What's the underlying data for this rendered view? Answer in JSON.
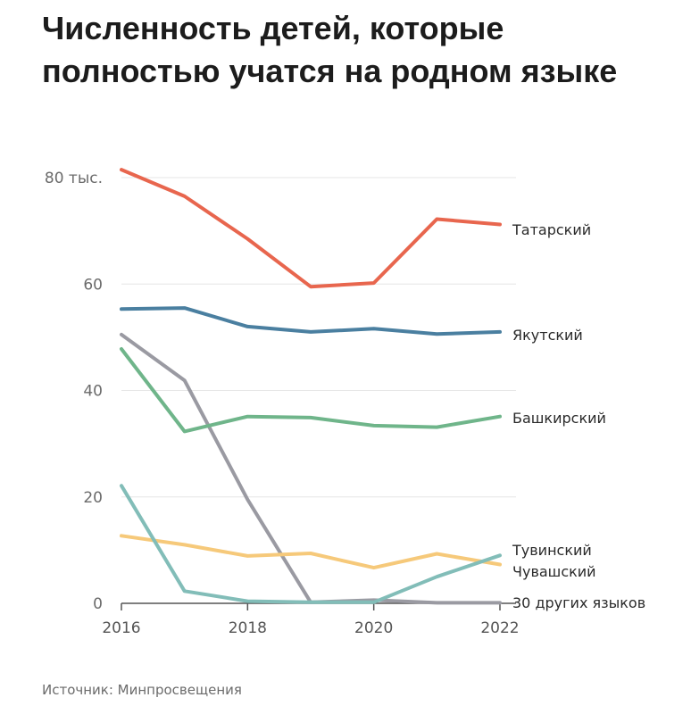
{
  "chart_data": {
    "type": "line",
    "title": "Численность детей, которые полностью учатся на родном языке",
    "x": [
      2016,
      2017,
      2018,
      2019,
      2020,
      2021,
      2022
    ],
    "x_tick_labels": [
      "2016",
      "2018",
      "2020",
      "2022"
    ],
    "y_tick_labels": [
      "0",
      "20",
      "40",
      "60",
      "80 тыс."
    ],
    "ylim": [
      0,
      80
    ],
    "grid": true,
    "series": [
      {
        "name": "Татарский",
        "color": "#e8664e",
        "values": [
          81.5,
          76.5,
          68.5,
          59.5,
          60.2,
          72.2,
          71.2
        ]
      },
      {
        "name": "Якутский",
        "color": "#4a7fa0",
        "values": [
          55.3,
          55.5,
          52.0,
          51.0,
          51.6,
          50.6,
          51.0
        ]
      },
      {
        "name": "Башкирский",
        "color": "#6fb58a",
        "values": [
          47.8,
          32.3,
          35.1,
          34.9,
          33.4,
          33.1,
          35.1
        ]
      },
      {
        "name": "Тувинский",
        "color": "#82bdb8",
        "values": [
          22.1,
          2.3,
          0.4,
          0.2,
          0.2,
          5.0,
          9.0
        ]
      },
      {
        "name": "Чувашский",
        "color": "#f6c97a",
        "values": [
          12.7,
          11.0,
          8.9,
          9.4,
          6.7,
          9.3,
          7.3
        ]
      },
      {
        "name": "30 других языков",
        "color": "#9a9aa2",
        "values": [
          50.5,
          41.9,
          19.5,
          0.2,
          0.6,
          0.1,
          0.1
        ]
      }
    ],
    "source": "Источник: Минпросвещения"
  }
}
